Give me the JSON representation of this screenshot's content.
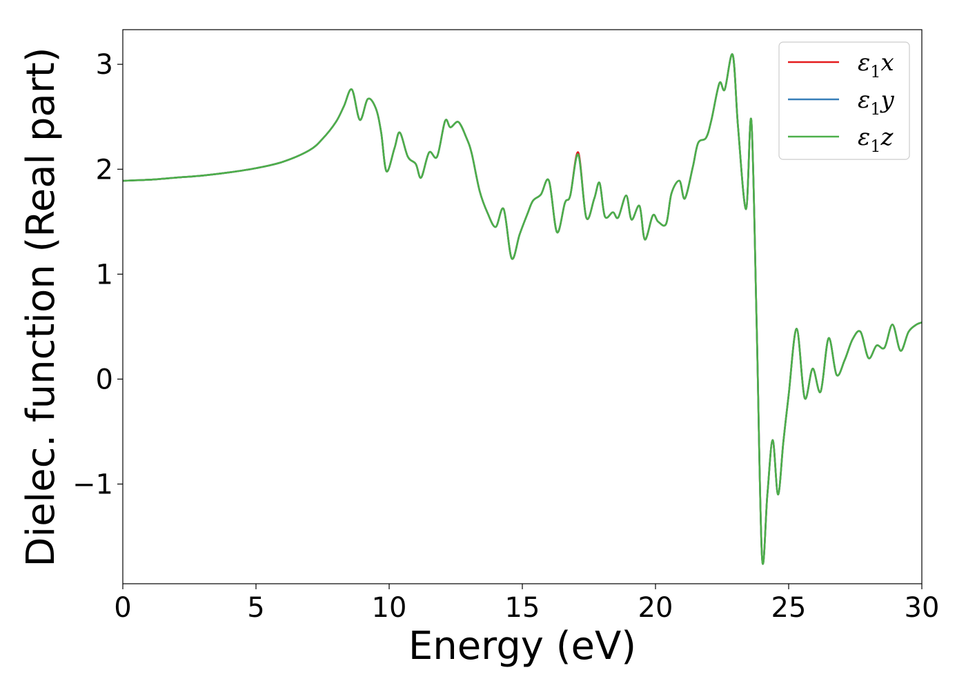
{
  "chart_data": {
    "type": "line",
    "title": "",
    "xlabel": "Energy (eV)",
    "ylabel": "Dielec. function (Real part)",
    "xlim": [
      0,
      30
    ],
    "ylim": [
      -1.95,
      3.33
    ],
    "xticks": [
      0,
      5,
      10,
      15,
      20,
      25,
      30
    ],
    "xtick_labels": [
      "0",
      "5",
      "10",
      "15",
      "20",
      "25",
      "30"
    ],
    "yticks": [
      -1,
      0,
      1,
      2,
      3
    ],
    "ytick_labels": [
      "−1",
      "0",
      "1",
      "2",
      "3"
    ],
    "grid": false,
    "legend_position": "top-right",
    "series": [
      {
        "name": "ε₁x",
        "legend_main": "ε",
        "legend_sub": "1",
        "legend_tail": "x",
        "color": "#e41a1c",
        "x": [
          0,
          1,
          2,
          3,
          4,
          5,
          6,
          7,
          7.5,
          8,
          8.3,
          8.6,
          8.9,
          9.2,
          9.5,
          9.7,
          9.9,
          10.2,
          10.4,
          10.7,
          11,
          11.2,
          11.5,
          11.8,
          12.1,
          12.3,
          12.6,
          12.9,
          13.1,
          13.4,
          13.7,
          14,
          14.3,
          14.6,
          14.9,
          15.2,
          15.4,
          15.7,
          16,
          16.3,
          16.6,
          16.8,
          17.1,
          17.4,
          17.7,
          17.9,
          18.1,
          18.4,
          18.6,
          18.9,
          19.1,
          19.4,
          19.6,
          19.9,
          20.1,
          20.4,
          20.6,
          20.9,
          21.1,
          21.4,
          21.6,
          21.9,
          22.1,
          22.4,
          22.6,
          22.9,
          23.1,
          23.4,
          23.6,
          23.8,
          24,
          24.2,
          24.4,
          24.6,
          24.8,
          25,
          25.3,
          25.6,
          25.9,
          26.2,
          26.5,
          26.8,
          27.1,
          27.4,
          27.7,
          28,
          28.3,
          28.6,
          28.9,
          29.2,
          29.5,
          29.8,
          30
        ],
        "y": [
          1.89,
          1.9,
          1.92,
          1.94,
          1.97,
          2.01,
          2.07,
          2.18,
          2.29,
          2.45,
          2.6,
          2.76,
          2.47,
          2.67,
          2.58,
          2.35,
          1.98,
          2.2,
          2.35,
          2.12,
          2.05,
          1.92,
          2.16,
          2.12,
          2.46,
          2.4,
          2.45,
          2.3,
          2.15,
          1.79,
          1.58,
          1.45,
          1.62,
          1.15,
          1.38,
          1.58,
          1.7,
          1.76,
          1.89,
          1.4,
          1.68,
          1.75,
          2.16,
          1.54,
          1.72,
          1.87,
          1.55,
          1.59,
          1.54,
          1.75,
          1.52,
          1.65,
          1.33,
          1.56,
          1.5,
          1.48,
          1.77,
          1.89,
          1.72,
          2.02,
          2.25,
          2.3,
          2.47,
          2.82,
          2.76,
          3.09,
          2.4,
          1.62,
          2.46,
          0.5,
          -1.7,
          -1.1,
          -0.58,
          -1.1,
          -0.6,
          -0.15,
          0.48,
          -0.18,
          0.1,
          -0.12,
          0.39,
          0.04,
          0.18,
          0.38,
          0.45,
          0.2,
          0.32,
          0.3,
          0.52,
          0.27,
          0.45,
          0.52,
          0.54
        ]
      },
      {
        "name": "ε₁y",
        "legend_main": "ε",
        "legend_sub": "1",
        "legend_tail": "y",
        "color": "#377eb8",
        "x": [
          0,
          1,
          2,
          3,
          4,
          5,
          6,
          7,
          7.5,
          8,
          8.3,
          8.6,
          8.9,
          9.2,
          9.5,
          9.7,
          9.9,
          10.2,
          10.4,
          10.7,
          11,
          11.2,
          11.5,
          11.8,
          12.1,
          12.3,
          12.6,
          12.9,
          13.1,
          13.4,
          13.7,
          14,
          14.3,
          14.6,
          14.9,
          15.2,
          15.4,
          15.7,
          16,
          16.3,
          16.6,
          16.8,
          17.1,
          17.4,
          17.7,
          17.9,
          18.1,
          18.4,
          18.6,
          18.9,
          19.1,
          19.4,
          19.6,
          19.9,
          20.1,
          20.4,
          20.6,
          20.9,
          21.1,
          21.4,
          21.6,
          21.9,
          22.1,
          22.4,
          22.6,
          22.9,
          23.1,
          23.4,
          23.6,
          23.8,
          24,
          24.2,
          24.4,
          24.6,
          24.8,
          25,
          25.3,
          25.6,
          25.9,
          26.2,
          26.5,
          26.8,
          27.1,
          27.4,
          27.7,
          28,
          28.3,
          28.6,
          28.9,
          29.2,
          29.5,
          29.8,
          30
        ],
        "y": [
          1.89,
          1.9,
          1.92,
          1.94,
          1.97,
          2.01,
          2.07,
          2.18,
          2.29,
          2.45,
          2.6,
          2.76,
          2.47,
          2.67,
          2.58,
          2.35,
          1.98,
          2.2,
          2.35,
          2.12,
          2.05,
          1.92,
          2.16,
          2.12,
          2.46,
          2.4,
          2.45,
          2.3,
          2.15,
          1.79,
          1.58,
          1.45,
          1.62,
          1.15,
          1.38,
          1.58,
          1.7,
          1.76,
          1.89,
          1.4,
          1.68,
          1.75,
          2.14,
          1.54,
          1.72,
          1.87,
          1.55,
          1.59,
          1.54,
          1.75,
          1.52,
          1.65,
          1.33,
          1.56,
          1.5,
          1.48,
          1.77,
          1.89,
          1.72,
          2.02,
          2.25,
          2.3,
          2.47,
          2.82,
          2.76,
          3.09,
          2.4,
          1.62,
          2.46,
          0.5,
          -1.7,
          -1.1,
          -0.58,
          -1.1,
          -0.6,
          -0.15,
          0.48,
          -0.18,
          0.1,
          -0.12,
          0.39,
          0.04,
          0.18,
          0.38,
          0.45,
          0.2,
          0.32,
          0.3,
          0.52,
          0.27,
          0.45,
          0.52,
          0.54
        ]
      },
      {
        "name": "ε₁z",
        "legend_main": "ε",
        "legend_sub": "1",
        "legend_tail": "z",
        "color": "#4daf4a",
        "x": [
          0,
          1,
          2,
          3,
          4,
          5,
          6,
          7,
          7.5,
          8,
          8.3,
          8.6,
          8.9,
          9.2,
          9.5,
          9.7,
          9.9,
          10.2,
          10.4,
          10.7,
          11,
          11.2,
          11.5,
          11.8,
          12.1,
          12.3,
          12.6,
          12.9,
          13.1,
          13.4,
          13.7,
          14,
          14.3,
          14.6,
          14.9,
          15.2,
          15.4,
          15.7,
          16,
          16.3,
          16.6,
          16.8,
          17.1,
          17.4,
          17.7,
          17.9,
          18.1,
          18.4,
          18.6,
          18.9,
          19.1,
          19.4,
          19.6,
          19.9,
          20.1,
          20.4,
          20.6,
          20.9,
          21.1,
          21.4,
          21.6,
          21.9,
          22.1,
          22.4,
          22.6,
          22.9,
          23.1,
          23.4,
          23.6,
          23.8,
          24,
          24.2,
          24.4,
          24.6,
          24.8,
          25,
          25.3,
          25.6,
          25.9,
          26.2,
          26.5,
          26.8,
          27.1,
          27.4,
          27.7,
          28,
          28.3,
          28.6,
          28.9,
          29.2,
          29.5,
          29.8,
          30
        ],
        "y": [
          1.89,
          1.9,
          1.92,
          1.94,
          1.97,
          2.01,
          2.07,
          2.18,
          2.29,
          2.45,
          2.6,
          2.76,
          2.47,
          2.67,
          2.58,
          2.35,
          1.98,
          2.2,
          2.35,
          2.12,
          2.05,
          1.92,
          2.16,
          2.12,
          2.46,
          2.4,
          2.45,
          2.3,
          2.15,
          1.79,
          1.58,
          1.45,
          1.62,
          1.15,
          1.38,
          1.58,
          1.7,
          1.76,
          1.89,
          1.4,
          1.68,
          1.75,
          2.14,
          1.54,
          1.72,
          1.87,
          1.55,
          1.59,
          1.54,
          1.75,
          1.52,
          1.65,
          1.33,
          1.56,
          1.5,
          1.48,
          1.77,
          1.89,
          1.72,
          2.02,
          2.25,
          2.3,
          2.47,
          2.82,
          2.76,
          3.09,
          2.4,
          1.62,
          2.46,
          0.5,
          -1.7,
          -1.1,
          -0.58,
          -1.1,
          -0.6,
          -0.15,
          0.48,
          -0.18,
          0.1,
          -0.12,
          0.39,
          0.04,
          0.18,
          0.38,
          0.45,
          0.2,
          0.32,
          0.3,
          0.52,
          0.27,
          0.45,
          0.52,
          0.54
        ]
      }
    ]
  }
}
